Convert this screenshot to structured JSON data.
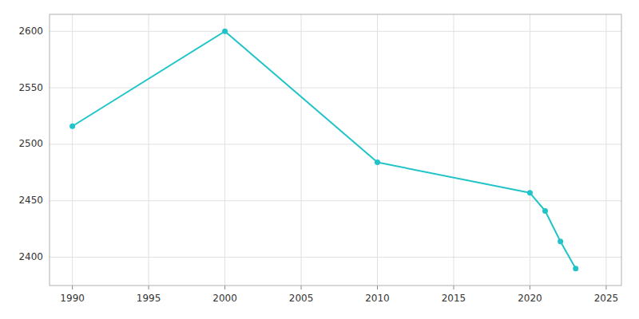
{
  "chart_data": {
    "type": "line",
    "x": [
      1990,
      2000,
      2010,
      2020,
      2021,
      2022,
      2023
    ],
    "values": [
      2516,
      2600,
      2484,
      2457,
      2441,
      2414,
      2390
    ],
    "color": "#20c4c8",
    "marker": "circle",
    "xlim": [
      1988.5,
      2026
    ],
    "ylim": [
      2375,
      2615
    ],
    "xticks": [
      1990,
      1995,
      2000,
      2005,
      2010,
      2015,
      2020,
      2025
    ],
    "yticks": [
      2400,
      2450,
      2500,
      2550,
      2600
    ],
    "grid": true
  }
}
